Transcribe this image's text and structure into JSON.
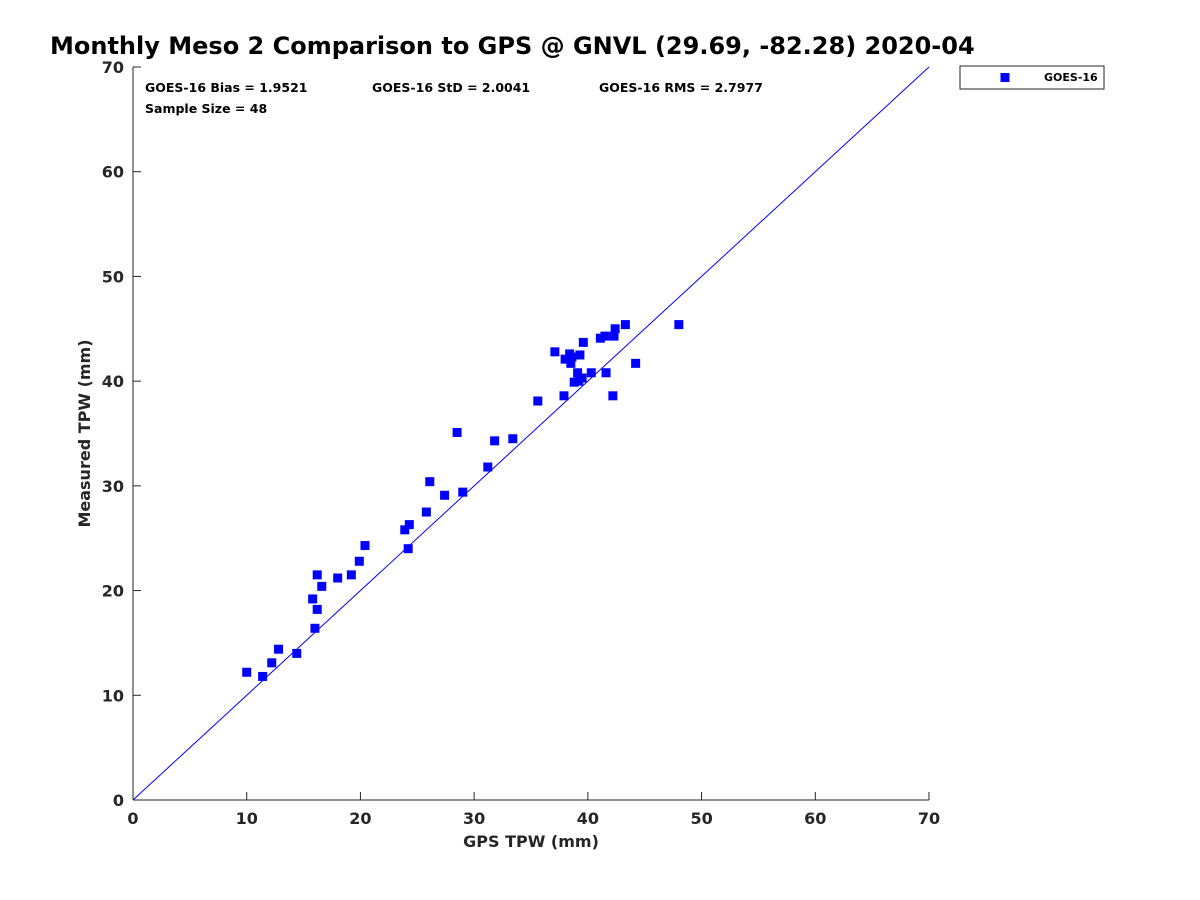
{
  "colors": {
    "series": "#0000ff",
    "axis": "#262626",
    "background": "#ffffff"
  },
  "chart_data": {
    "type": "scatter",
    "title": "Monthly Meso 2 Comparison to GPS @ GNVL (29.69, -82.28) 2020-04",
    "xlabel": "GPS TPW (mm)",
    "ylabel": "Measured TPW (mm)",
    "xlim": [
      0,
      70
    ],
    "ylim": [
      0,
      70
    ],
    "xticks": [
      0,
      10,
      20,
      30,
      40,
      50,
      60,
      70
    ],
    "yticks": [
      0,
      10,
      20,
      30,
      40,
      50,
      60,
      70
    ],
    "grid": false,
    "legend": {
      "position": "outside-top-right",
      "entries": [
        "GOES-16"
      ]
    },
    "reference_line": {
      "name": "one-to-one",
      "x": [
        0,
        70
      ],
      "y": [
        0,
        70
      ]
    },
    "annotations": {
      "bias": "GOES-16 Bias = 1.9521",
      "std": "GOES-16 StD = 2.0041",
      "rms": "GOES-16 RMS = 2.7977",
      "sample_size": "Sample Size = 48"
    },
    "series": [
      {
        "name": "GOES-16",
        "marker": "square",
        "x": [
          10.0,
          11.4,
          12.2,
          12.8,
          14.4,
          15.8,
          16.0,
          16.2,
          16.2,
          16.6,
          18.0,
          19.2,
          19.9,
          20.4,
          23.9,
          24.2,
          24.3,
          25.8,
          26.1,
          27.4,
          28.5,
          29.0,
          31.2,
          31.8,
          33.4,
          35.6,
          37.1,
          37.9,
          38.0,
          38.4,
          38.5,
          38.6,
          38.8,
          39.1,
          39.2,
          39.3,
          39.5,
          39.6,
          40.3,
          41.1,
          41.5,
          41.6,
          42.2,
          42.3,
          42.4,
          43.3,
          44.2,
          48.0
        ],
        "y": [
          12.2,
          11.8,
          13.1,
          14.4,
          14.0,
          19.2,
          16.4,
          18.2,
          21.5,
          20.4,
          21.2,
          21.5,
          22.8,
          24.3,
          25.8,
          24.0,
          26.3,
          27.5,
          30.4,
          29.1,
          35.1,
          29.4,
          31.8,
          34.3,
          34.5,
          38.1,
          42.8,
          38.6,
          42.1,
          42.6,
          41.7,
          42.3,
          39.9,
          40.8,
          40.0,
          42.5,
          40.3,
          43.7,
          40.8,
          44.1,
          44.3,
          40.8,
          38.6,
          44.3,
          45.0,
          45.4,
          41.7,
          45.4
        ]
      }
    ]
  }
}
